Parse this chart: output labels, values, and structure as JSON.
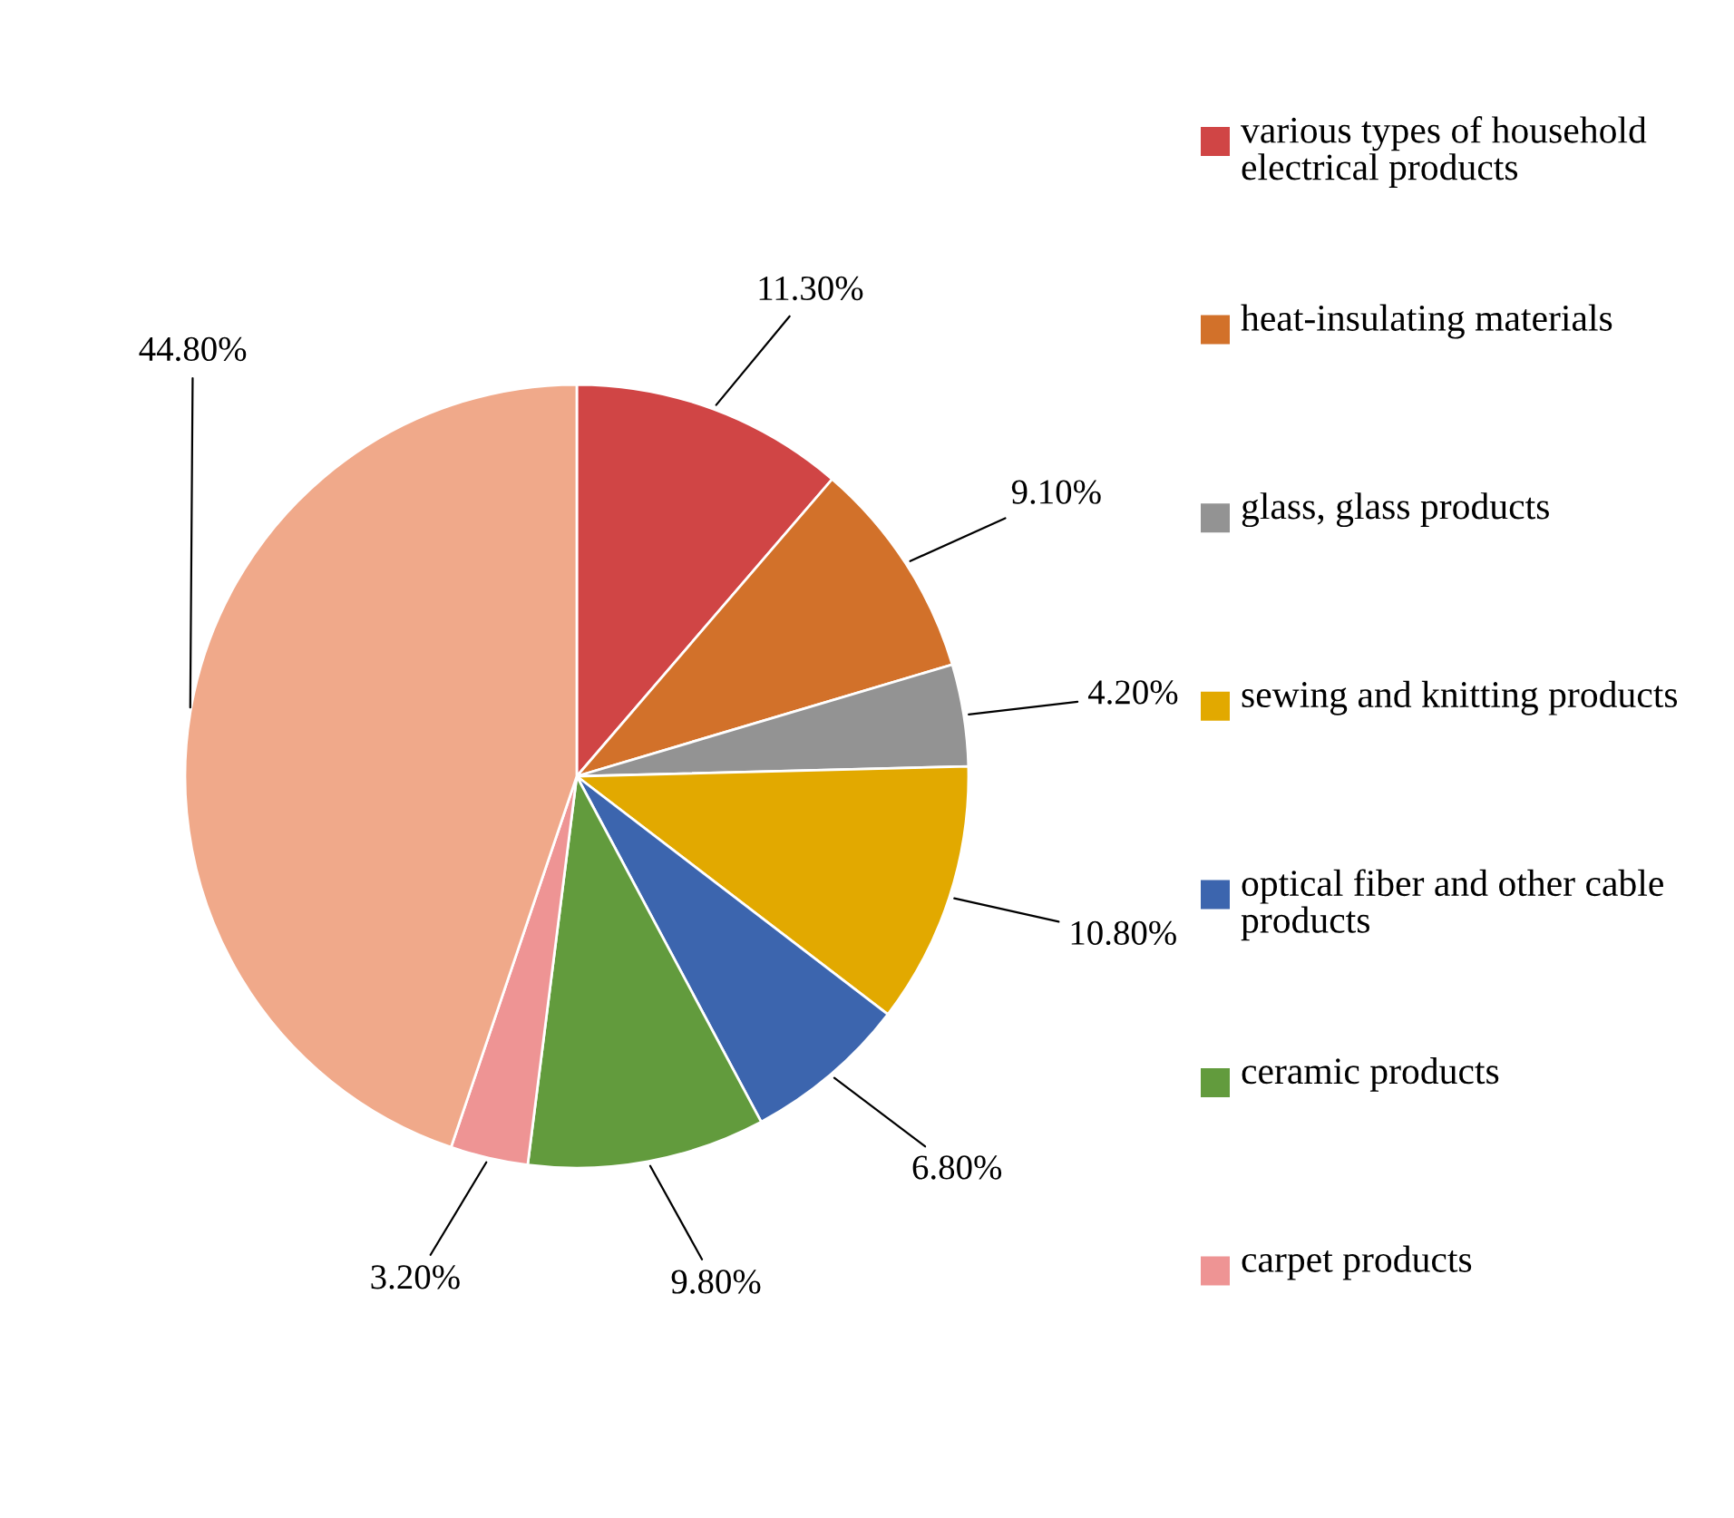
{
  "chart_data": {
    "type": "pie",
    "categories": [
      "various types of household electrical products",
      "heat-insulating materials",
      "glass, glass products",
      "sewing and knitting products",
      "optical fiber and other cable products",
      "ceramic products",
      "carpet products",
      null
    ],
    "values": [
      11.3,
      9.1,
      4.2,
      10.8,
      6.8,
      9.8,
      3.2,
      44.8
    ],
    "value_labels": [
      "11.30%",
      "9.10%",
      "4.20%",
      "10.80%",
      "6.80%",
      "9.80%",
      "3.20%",
      "44.80%"
    ],
    "colors": [
      "#d04545",
      "#d2712a",
      "#939393",
      "#e2a900",
      "#3c65ae",
      "#629b3d",
      "#ee9494",
      "#f0a98a"
    ],
    "legend": "right"
  }
}
